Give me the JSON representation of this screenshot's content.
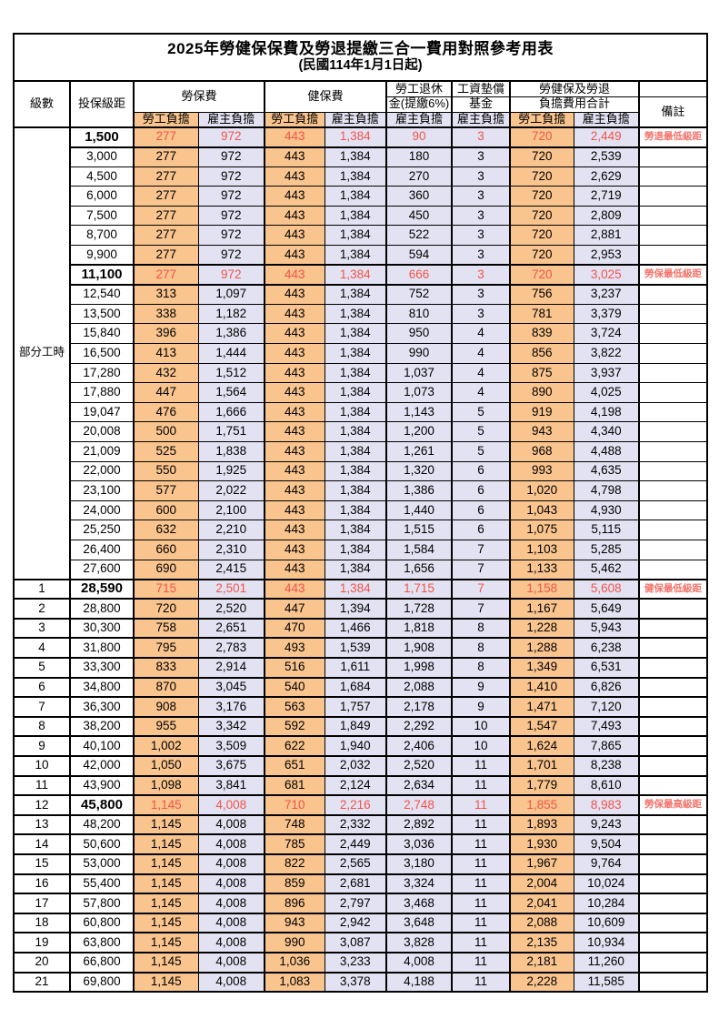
{
  "title": {
    "line1": "2025年勞健保保費及勞退提繳三合一費用對照參考用表",
    "line2": "(民國114年1月1日起)"
  },
  "header": {
    "level": "級數",
    "bracket": "投保級距",
    "labor": "勞保費",
    "health": "健保費",
    "pension_line1": "勞工退休",
    "pension_line2": "金(提繳6%)",
    "wage_fund_line1": "工資墊償",
    "wage_fund_line2": "基金",
    "total_line1": "勞健保及勞退",
    "total_line2": "負擔費用合計",
    "note": "備註",
    "employee": "勞工負擔",
    "employer": "雇主負擔"
  },
  "part_time_label": "部分工時",
  "part_time_row_count": 23,
  "colors": {
    "employee_bg": "#f9c48e",
    "employer_bg": "#e3e2f2",
    "highlight_text": "#f2544a",
    "note_text": "#f4726a",
    "border": "#000000"
  },
  "rows": [
    {
      "level": "",
      "bracket": "1,500",
      "labor_emp": "277",
      "labor_er": "972",
      "health_emp": "443",
      "health_er": "1,384",
      "pension_er": "90",
      "wage_er": "3",
      "total_emp": "720",
      "total_er": "2,449",
      "note": "勞退最低級距",
      "red": true
    },
    {
      "level": "",
      "bracket": "3,000",
      "labor_emp": "277",
      "labor_er": "972",
      "health_emp": "443",
      "health_er": "1,384",
      "pension_er": "180",
      "wage_er": "3",
      "total_emp": "720",
      "total_er": "2,539",
      "note": "",
      "red": false
    },
    {
      "level": "",
      "bracket": "4,500",
      "labor_emp": "277",
      "labor_er": "972",
      "health_emp": "443",
      "health_er": "1,384",
      "pension_er": "270",
      "wage_er": "3",
      "total_emp": "720",
      "total_er": "2,629",
      "note": "",
      "red": false
    },
    {
      "level": "",
      "bracket": "6,000",
      "labor_emp": "277",
      "labor_er": "972",
      "health_emp": "443",
      "health_er": "1,384",
      "pension_er": "360",
      "wage_er": "3",
      "total_emp": "720",
      "total_er": "2,719",
      "note": "",
      "red": false
    },
    {
      "level": "",
      "bracket": "7,500",
      "labor_emp": "277",
      "labor_er": "972",
      "health_emp": "443",
      "health_er": "1,384",
      "pension_er": "450",
      "wage_er": "3",
      "total_emp": "720",
      "total_er": "2,809",
      "note": "",
      "red": false
    },
    {
      "level": "",
      "bracket": "8,700",
      "labor_emp": "277",
      "labor_er": "972",
      "health_emp": "443",
      "health_er": "1,384",
      "pension_er": "522",
      "wage_er": "3",
      "total_emp": "720",
      "total_er": "2,881",
      "note": "",
      "red": false
    },
    {
      "level": "",
      "bracket": "9,900",
      "labor_emp": "277",
      "labor_er": "972",
      "health_emp": "443",
      "health_er": "1,384",
      "pension_er": "594",
      "wage_er": "3",
      "total_emp": "720",
      "total_er": "2,953",
      "note": "",
      "red": false
    },
    {
      "level": "",
      "bracket": "11,100",
      "labor_emp": "277",
      "labor_er": "972",
      "health_emp": "443",
      "health_er": "1,384",
      "pension_er": "666",
      "wage_er": "3",
      "total_emp": "720",
      "total_er": "3,025",
      "note": "勞保最低級距",
      "red": true
    },
    {
      "level": "",
      "bracket": "12,540",
      "labor_emp": "313",
      "labor_er": "1,097",
      "health_emp": "443",
      "health_er": "1,384",
      "pension_er": "752",
      "wage_er": "3",
      "total_emp": "756",
      "total_er": "3,237",
      "note": "",
      "red": false
    },
    {
      "level": "",
      "bracket": "13,500",
      "labor_emp": "338",
      "labor_er": "1,182",
      "health_emp": "443",
      "health_er": "1,384",
      "pension_er": "810",
      "wage_er": "3",
      "total_emp": "781",
      "total_er": "3,379",
      "note": "",
      "red": false
    },
    {
      "level": "",
      "bracket": "15,840",
      "labor_emp": "396",
      "labor_er": "1,386",
      "health_emp": "443",
      "health_er": "1,384",
      "pension_er": "950",
      "wage_er": "4",
      "total_emp": "839",
      "total_er": "3,724",
      "note": "",
      "red": false
    },
    {
      "level": "",
      "bracket": "16,500",
      "labor_emp": "413",
      "labor_er": "1,444",
      "health_emp": "443",
      "health_er": "1,384",
      "pension_er": "990",
      "wage_er": "4",
      "total_emp": "856",
      "total_er": "3,822",
      "note": "",
      "red": false
    },
    {
      "level": "",
      "bracket": "17,280",
      "labor_emp": "432",
      "labor_er": "1,512",
      "health_emp": "443",
      "health_er": "1,384",
      "pension_er": "1,037",
      "wage_er": "4",
      "total_emp": "875",
      "total_er": "3,937",
      "note": "",
      "red": false
    },
    {
      "level": "",
      "bracket": "17,880",
      "labor_emp": "447",
      "labor_er": "1,564",
      "health_emp": "443",
      "health_er": "1,384",
      "pension_er": "1,073",
      "wage_er": "4",
      "total_emp": "890",
      "total_er": "4,025",
      "note": "",
      "red": false
    },
    {
      "level": "",
      "bracket": "19,047",
      "labor_emp": "476",
      "labor_er": "1,666",
      "health_emp": "443",
      "health_er": "1,384",
      "pension_er": "1,143",
      "wage_er": "5",
      "total_emp": "919",
      "total_er": "4,198",
      "note": "",
      "red": false
    },
    {
      "level": "",
      "bracket": "20,008",
      "labor_emp": "500",
      "labor_er": "1,751",
      "health_emp": "443",
      "health_er": "1,384",
      "pension_er": "1,200",
      "wage_er": "5",
      "total_emp": "943",
      "total_er": "4,340",
      "note": "",
      "red": false
    },
    {
      "level": "",
      "bracket": "21,009",
      "labor_emp": "525",
      "labor_er": "1,838",
      "health_emp": "443",
      "health_er": "1,384",
      "pension_er": "1,261",
      "wage_er": "5",
      "total_emp": "968",
      "total_er": "4,488",
      "note": "",
      "red": false
    },
    {
      "level": "",
      "bracket": "22,000",
      "labor_emp": "550",
      "labor_er": "1,925",
      "health_emp": "443",
      "health_er": "1,384",
      "pension_er": "1,320",
      "wage_er": "6",
      "total_emp": "993",
      "total_er": "4,635",
      "note": "",
      "red": false
    },
    {
      "level": "",
      "bracket": "23,100",
      "labor_emp": "577",
      "labor_er": "2,022",
      "health_emp": "443",
      "health_er": "1,384",
      "pension_er": "1,386",
      "wage_er": "6",
      "total_emp": "1,020",
      "total_er": "4,798",
      "note": "",
      "red": false
    },
    {
      "level": "",
      "bracket": "24,000",
      "labor_emp": "600",
      "labor_er": "2,100",
      "health_emp": "443",
      "health_er": "1,384",
      "pension_er": "1,440",
      "wage_er": "6",
      "total_emp": "1,043",
      "total_er": "4,930",
      "note": "",
      "red": false
    },
    {
      "level": "",
      "bracket": "25,250",
      "labor_emp": "632",
      "labor_er": "2,210",
      "health_emp": "443",
      "health_er": "1,384",
      "pension_er": "1,515",
      "wage_er": "6",
      "total_emp": "1,075",
      "total_er": "5,115",
      "note": "",
      "red": false
    },
    {
      "level": "",
      "bracket": "26,400",
      "labor_emp": "660",
      "labor_er": "2,310",
      "health_emp": "443",
      "health_er": "1,384",
      "pension_er": "1,584",
      "wage_er": "7",
      "total_emp": "1,103",
      "total_er": "5,285",
      "note": "",
      "red": false
    },
    {
      "level": "",
      "bracket": "27,600",
      "labor_emp": "690",
      "labor_er": "2,415",
      "health_emp": "443",
      "health_er": "1,384",
      "pension_er": "1,656",
      "wage_er": "7",
      "total_emp": "1,133",
      "total_er": "5,462",
      "note": "",
      "red": false
    },
    {
      "level": "1",
      "bracket": "28,590",
      "labor_emp": "715",
      "labor_er": "2,501",
      "health_emp": "443",
      "health_er": "1,384",
      "pension_er": "1,715",
      "wage_er": "7",
      "total_emp": "1,158",
      "total_er": "5,608",
      "note": "健保最低級距",
      "red": true
    },
    {
      "level": "2",
      "bracket": "28,800",
      "labor_emp": "720",
      "labor_er": "2,520",
      "health_emp": "447",
      "health_er": "1,394",
      "pension_er": "1,728",
      "wage_er": "7",
      "total_emp": "1,167",
      "total_er": "5,649",
      "note": "",
      "red": false
    },
    {
      "level": "3",
      "bracket": "30,300",
      "labor_emp": "758",
      "labor_er": "2,651",
      "health_emp": "470",
      "health_er": "1,466",
      "pension_er": "1,818",
      "wage_er": "8",
      "total_emp": "1,228",
      "total_er": "5,943",
      "note": "",
      "red": false
    },
    {
      "level": "4",
      "bracket": "31,800",
      "labor_emp": "795",
      "labor_er": "2,783",
      "health_emp": "493",
      "health_er": "1,539",
      "pension_er": "1,908",
      "wage_er": "8",
      "total_emp": "1,288",
      "total_er": "6,238",
      "note": "",
      "red": false
    },
    {
      "level": "5",
      "bracket": "33,300",
      "labor_emp": "833",
      "labor_er": "2,914",
      "health_emp": "516",
      "health_er": "1,611",
      "pension_er": "1,998",
      "wage_er": "8",
      "total_emp": "1,349",
      "total_er": "6,531",
      "note": "",
      "red": false
    },
    {
      "level": "6",
      "bracket": "34,800",
      "labor_emp": "870",
      "labor_er": "3,045",
      "health_emp": "540",
      "health_er": "1,684",
      "pension_er": "2,088",
      "wage_er": "9",
      "total_emp": "1,410",
      "total_er": "6,826",
      "note": "",
      "red": false
    },
    {
      "level": "7",
      "bracket": "36,300",
      "labor_emp": "908",
      "labor_er": "3,176",
      "health_emp": "563",
      "health_er": "1,757",
      "pension_er": "2,178",
      "wage_er": "9",
      "total_emp": "1,471",
      "total_er": "7,120",
      "note": "",
      "red": false
    },
    {
      "level": "8",
      "bracket": "38,200",
      "labor_emp": "955",
      "labor_er": "3,342",
      "health_emp": "592",
      "health_er": "1,849",
      "pension_er": "2,292",
      "wage_er": "10",
      "total_emp": "1,547",
      "total_er": "7,493",
      "note": "",
      "red": false
    },
    {
      "level": "9",
      "bracket": "40,100",
      "labor_emp": "1,002",
      "labor_er": "3,509",
      "health_emp": "622",
      "health_er": "1,940",
      "pension_er": "2,406",
      "wage_er": "10",
      "total_emp": "1,624",
      "total_er": "7,865",
      "note": "",
      "red": false
    },
    {
      "level": "10",
      "bracket": "42,000",
      "labor_emp": "1,050",
      "labor_er": "3,675",
      "health_emp": "651",
      "health_er": "2,032",
      "pension_er": "2,520",
      "wage_er": "11",
      "total_emp": "1,701",
      "total_er": "8,238",
      "note": "",
      "red": false
    },
    {
      "level": "11",
      "bracket": "43,900",
      "labor_emp": "1,098",
      "labor_er": "3,841",
      "health_emp": "681",
      "health_er": "2,124",
      "pension_er": "2,634",
      "wage_er": "11",
      "total_emp": "1,779",
      "total_er": "8,610",
      "note": "",
      "red": false
    },
    {
      "level": "12",
      "bracket": "45,800",
      "labor_emp": "1,145",
      "labor_er": "4,008",
      "health_emp": "710",
      "health_er": "2,216",
      "pension_er": "2,748",
      "wage_er": "11",
      "total_emp": "1,855",
      "total_er": "8,983",
      "note": "勞保最高級距",
      "red": true
    },
    {
      "level": "13",
      "bracket": "48,200",
      "labor_emp": "1,145",
      "labor_er": "4,008",
      "health_emp": "748",
      "health_er": "2,332",
      "pension_er": "2,892",
      "wage_er": "11",
      "total_emp": "1,893",
      "total_er": "9,243",
      "note": "",
      "red": false
    },
    {
      "level": "14",
      "bracket": "50,600",
      "labor_emp": "1,145",
      "labor_er": "4,008",
      "health_emp": "785",
      "health_er": "2,449",
      "pension_er": "3,036",
      "wage_er": "11",
      "total_emp": "1,930",
      "total_er": "9,504",
      "note": "",
      "red": false
    },
    {
      "level": "15",
      "bracket": "53,000",
      "labor_emp": "1,145",
      "labor_er": "4,008",
      "health_emp": "822",
      "health_er": "2,565",
      "pension_er": "3,180",
      "wage_er": "11",
      "total_emp": "1,967",
      "total_er": "9,764",
      "note": "",
      "red": false
    },
    {
      "level": "16",
      "bracket": "55,400",
      "labor_emp": "1,145",
      "labor_er": "4,008",
      "health_emp": "859",
      "health_er": "2,681",
      "pension_er": "3,324",
      "wage_er": "11",
      "total_emp": "2,004",
      "total_er": "10,024",
      "note": "",
      "red": false
    },
    {
      "level": "17",
      "bracket": "57,800",
      "labor_emp": "1,145",
      "labor_er": "4,008",
      "health_emp": "896",
      "health_er": "2,797",
      "pension_er": "3,468",
      "wage_er": "11",
      "total_emp": "2,041",
      "total_er": "10,284",
      "note": "",
      "red": false
    },
    {
      "level": "18",
      "bracket": "60,800",
      "labor_emp": "1,145",
      "labor_er": "4,008",
      "health_emp": "943",
      "health_er": "2,942",
      "pension_er": "3,648",
      "wage_er": "11",
      "total_emp": "2,088",
      "total_er": "10,609",
      "note": "",
      "red": false
    },
    {
      "level": "19",
      "bracket": "63,800",
      "labor_emp": "1,145",
      "labor_er": "4,008",
      "health_emp": "990",
      "health_er": "3,087",
      "pension_er": "3,828",
      "wage_er": "11",
      "total_emp": "2,135",
      "total_er": "10,934",
      "note": "",
      "red": false
    },
    {
      "level": "20",
      "bracket": "66,800",
      "labor_emp": "1,145",
      "labor_er": "4,008",
      "health_emp": "1,036",
      "health_er": "3,233",
      "pension_er": "4,008",
      "wage_er": "11",
      "total_emp": "2,181",
      "total_er": "11,260",
      "note": "",
      "red": false
    },
    {
      "level": "21",
      "bracket": "69,800",
      "labor_emp": "1,145",
      "labor_er": "4,008",
      "health_emp": "1,083",
      "health_er": "3,378",
      "pension_er": "4,188",
      "wage_er": "11",
      "total_emp": "2,228",
      "total_er": "11,585",
      "note": "",
      "red": false
    }
  ]
}
